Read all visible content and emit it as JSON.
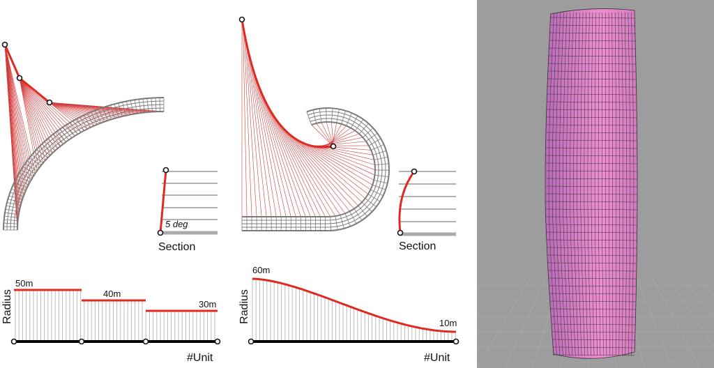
{
  "left_panel": {
    "section": {
      "angle_label": "5 deg",
      "label": "Section"
    },
    "radius_chart": {
      "step_labels": [
        "50m",
        "40m",
        "30m"
      ],
      "y_label": "Radius",
      "x_label": "#Unit"
    }
  },
  "middle_panel": {
    "section": {
      "label": "Section"
    },
    "radius_chart": {
      "start_label": "60m",
      "end_label": "10m",
      "y_label": "Radius",
      "x_label": "#Unit"
    }
  }
}
